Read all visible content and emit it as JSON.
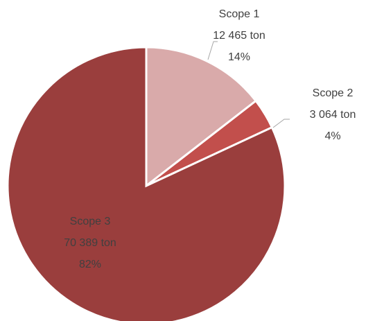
{
  "chart_data": {
    "type": "pie",
    "categories": [
      "Scope 1",
      "Scope 2",
      "Scope 3"
    ],
    "values": [
      12465,
      3064,
      70389
    ],
    "value_labels": [
      "12 465 ton",
      "3 064 ton",
      "70 389 ton"
    ],
    "percent_labels": [
      "14%",
      "4%",
      "82%"
    ],
    "colors": [
      "#d9aaaa",
      "#c24f4c",
      "#9a3e3d"
    ]
  }
}
